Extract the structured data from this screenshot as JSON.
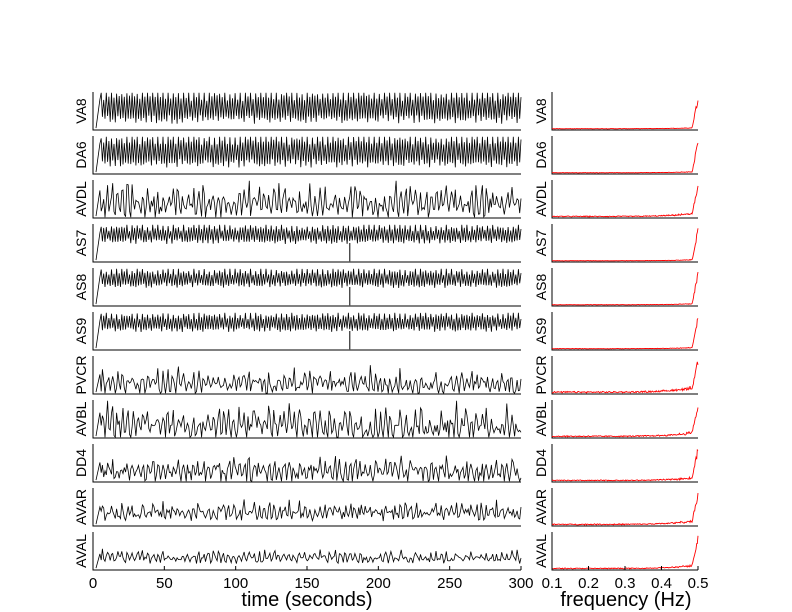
{
  "chart_data": [
    {
      "type": "line",
      "panel": "time-series",
      "xlabel": "time (seconds)",
      "xlim": [
        0,
        300
      ],
      "xticks": [
        0,
        50,
        100,
        150,
        200,
        250,
        300
      ],
      "line_color": "#000000",
      "series": [
        {
          "name": "VA8"
        },
        {
          "name": "DA6"
        },
        {
          "name": "AVDL"
        },
        {
          "name": "AS7"
        },
        {
          "name": "AS8"
        },
        {
          "name": "AS9"
        },
        {
          "name": "PVCR"
        },
        {
          "name": "AVBL"
        },
        {
          "name": "DD4"
        },
        {
          "name": "AVAR"
        },
        {
          "name": "AVAL"
        }
      ]
    },
    {
      "type": "line",
      "panel": "power-spectrum",
      "xlabel": "frequency (Hz)",
      "xlim": [
        0.1,
        0.5
      ],
      "xticks": [
        0.1,
        0.2,
        0.3,
        0.4,
        0.5
      ],
      "line_color": "#ff0000",
      "series": [
        {
          "name": "VA8"
        },
        {
          "name": "DA6"
        },
        {
          "name": "AVDL"
        },
        {
          "name": "AS7"
        },
        {
          "name": "AS8"
        },
        {
          "name": "AS9"
        },
        {
          "name": "PVCR"
        },
        {
          "name": "AVBL"
        },
        {
          "name": "DD4"
        },
        {
          "name": "AVAR"
        },
        {
          "name": "AVAL"
        }
      ]
    }
  ]
}
